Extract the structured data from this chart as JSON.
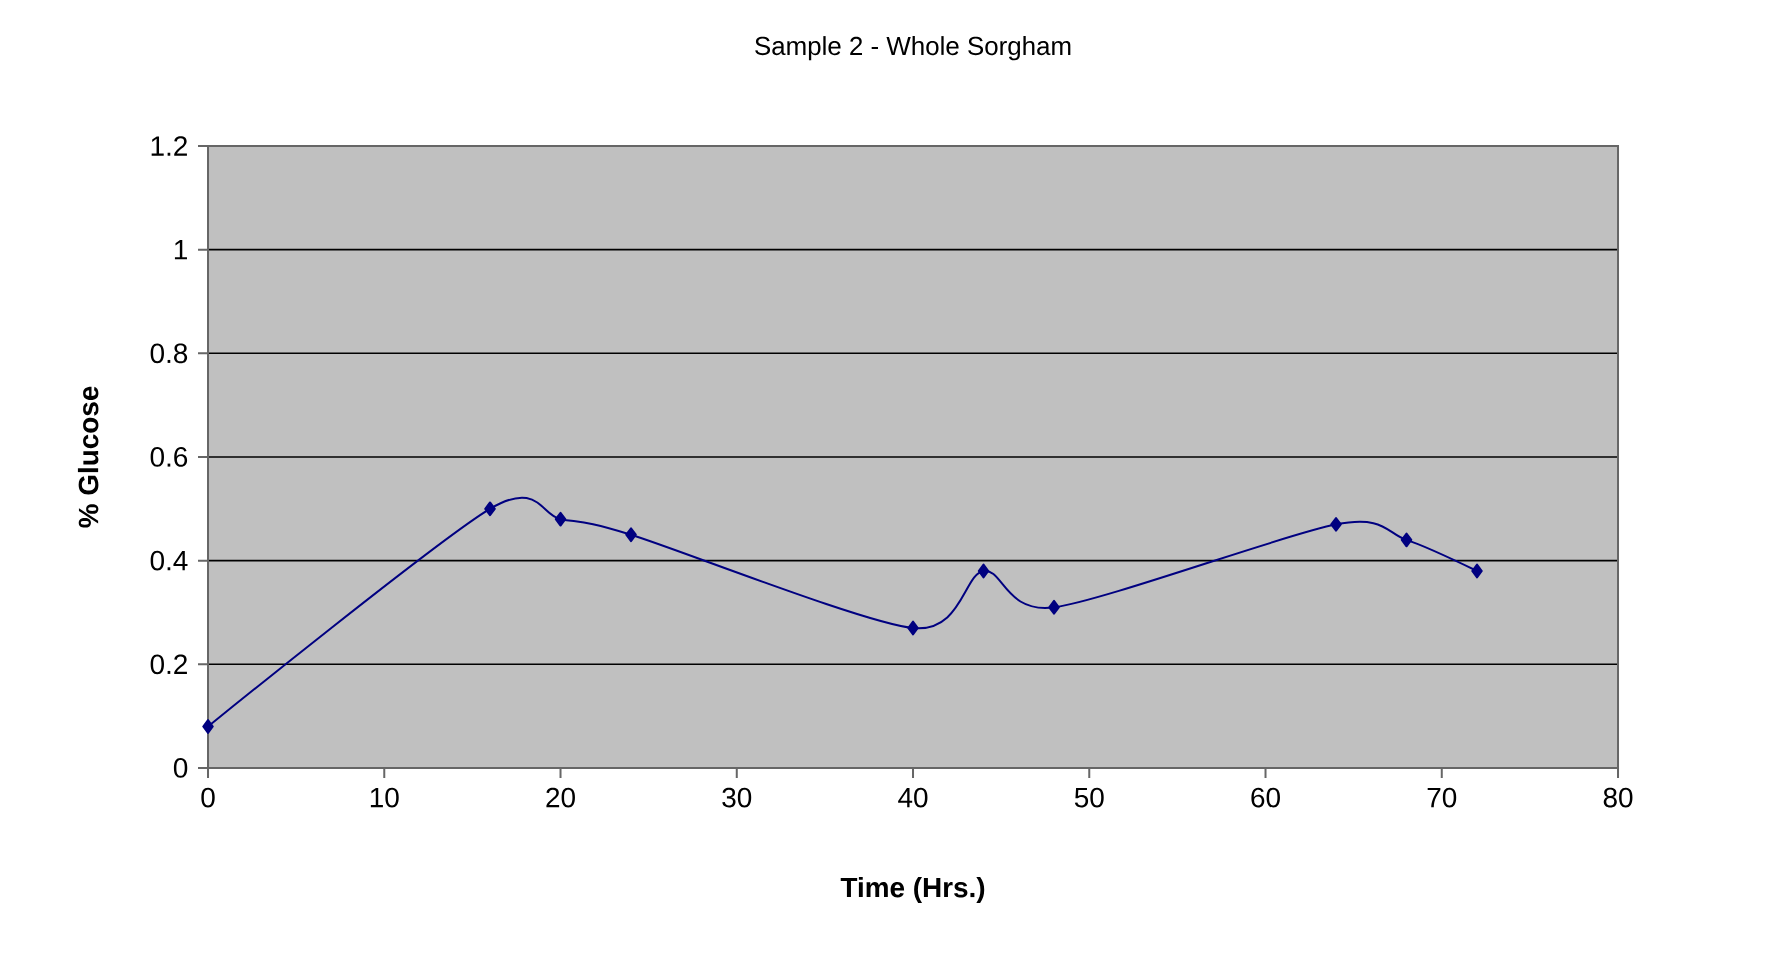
{
  "chart_data": {
    "type": "line",
    "title": "Sample 2 - Whole Sorgham",
    "xlabel": "Time (Hrs.)",
    "ylabel": "% Glucose",
    "x": [
      0,
      16,
      20,
      24,
      40,
      44,
      48,
      64,
      68,
      72
    ],
    "series": [
      {
        "color": "#000080",
        "values": [
          0.08,
          0.5,
          0.48,
          0.45,
          0.27,
          0.38,
          0.31,
          0.47,
          0.44,
          0.38
        ]
      }
    ],
    "xlim": [
      0,
      80
    ],
    "xticks": [
      0,
      10,
      20,
      30,
      40,
      50,
      60,
      70,
      80
    ],
    "ylim": [
      0,
      1.2
    ],
    "yticks": [
      0,
      0.2,
      0.4,
      0.6,
      0.8,
      1,
      1.2
    ],
    "grid": "y",
    "marker": "diamond",
    "line_style": "solid"
  }
}
